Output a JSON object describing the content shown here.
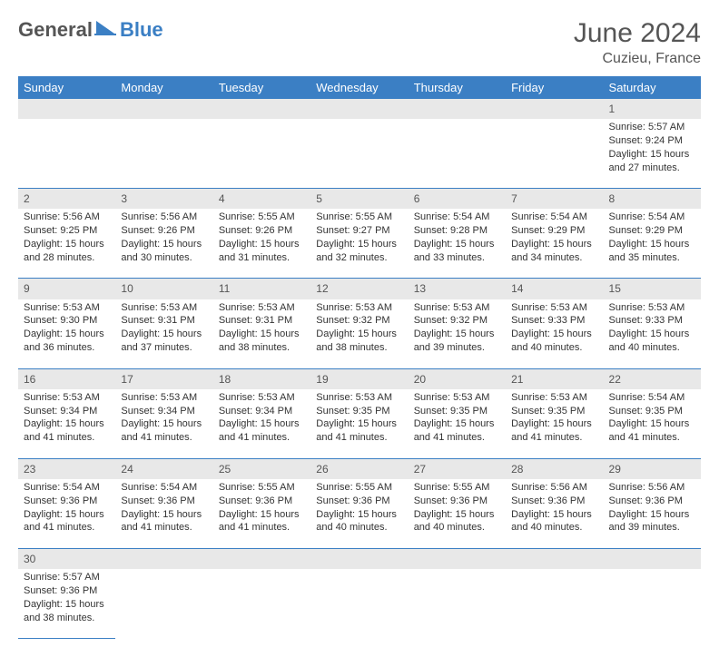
{
  "logo": {
    "general": "General",
    "blue": "Blue"
  },
  "title": "June 2024",
  "location": "Cuzieu, France",
  "colors": {
    "header_bg": "#3b7fc4",
    "header_text": "#ffffff",
    "daynum_bg": "#e8e8e8",
    "border": "#3b7fc4",
    "text": "#333333"
  },
  "daysOfWeek": [
    "Sunday",
    "Monday",
    "Tuesday",
    "Wednesday",
    "Thursday",
    "Friday",
    "Saturday"
  ],
  "weeks": [
    [
      null,
      null,
      null,
      null,
      null,
      null,
      {
        "n": "1",
        "sr": "Sunrise: 5:57 AM",
        "ss": "Sunset: 9:24 PM",
        "d1": "Daylight: 15 hours",
        "d2": "and 27 minutes."
      }
    ],
    [
      {
        "n": "2",
        "sr": "Sunrise: 5:56 AM",
        "ss": "Sunset: 9:25 PM",
        "d1": "Daylight: 15 hours",
        "d2": "and 28 minutes."
      },
      {
        "n": "3",
        "sr": "Sunrise: 5:56 AM",
        "ss": "Sunset: 9:26 PM",
        "d1": "Daylight: 15 hours",
        "d2": "and 30 minutes."
      },
      {
        "n": "4",
        "sr": "Sunrise: 5:55 AM",
        "ss": "Sunset: 9:26 PM",
        "d1": "Daylight: 15 hours",
        "d2": "and 31 minutes."
      },
      {
        "n": "5",
        "sr": "Sunrise: 5:55 AM",
        "ss": "Sunset: 9:27 PM",
        "d1": "Daylight: 15 hours",
        "d2": "and 32 minutes."
      },
      {
        "n": "6",
        "sr": "Sunrise: 5:54 AM",
        "ss": "Sunset: 9:28 PM",
        "d1": "Daylight: 15 hours",
        "d2": "and 33 minutes."
      },
      {
        "n": "7",
        "sr": "Sunrise: 5:54 AM",
        "ss": "Sunset: 9:29 PM",
        "d1": "Daylight: 15 hours",
        "d2": "and 34 minutes."
      },
      {
        "n": "8",
        "sr": "Sunrise: 5:54 AM",
        "ss": "Sunset: 9:29 PM",
        "d1": "Daylight: 15 hours",
        "d2": "and 35 minutes."
      }
    ],
    [
      {
        "n": "9",
        "sr": "Sunrise: 5:53 AM",
        "ss": "Sunset: 9:30 PM",
        "d1": "Daylight: 15 hours",
        "d2": "and 36 minutes."
      },
      {
        "n": "10",
        "sr": "Sunrise: 5:53 AM",
        "ss": "Sunset: 9:31 PM",
        "d1": "Daylight: 15 hours",
        "d2": "and 37 minutes."
      },
      {
        "n": "11",
        "sr": "Sunrise: 5:53 AM",
        "ss": "Sunset: 9:31 PM",
        "d1": "Daylight: 15 hours",
        "d2": "and 38 minutes."
      },
      {
        "n": "12",
        "sr": "Sunrise: 5:53 AM",
        "ss": "Sunset: 9:32 PM",
        "d1": "Daylight: 15 hours",
        "d2": "and 38 minutes."
      },
      {
        "n": "13",
        "sr": "Sunrise: 5:53 AM",
        "ss": "Sunset: 9:32 PM",
        "d1": "Daylight: 15 hours",
        "d2": "and 39 minutes."
      },
      {
        "n": "14",
        "sr": "Sunrise: 5:53 AM",
        "ss": "Sunset: 9:33 PM",
        "d1": "Daylight: 15 hours",
        "d2": "and 40 minutes."
      },
      {
        "n": "15",
        "sr": "Sunrise: 5:53 AM",
        "ss": "Sunset: 9:33 PM",
        "d1": "Daylight: 15 hours",
        "d2": "and 40 minutes."
      }
    ],
    [
      {
        "n": "16",
        "sr": "Sunrise: 5:53 AM",
        "ss": "Sunset: 9:34 PM",
        "d1": "Daylight: 15 hours",
        "d2": "and 41 minutes."
      },
      {
        "n": "17",
        "sr": "Sunrise: 5:53 AM",
        "ss": "Sunset: 9:34 PM",
        "d1": "Daylight: 15 hours",
        "d2": "and 41 minutes."
      },
      {
        "n": "18",
        "sr": "Sunrise: 5:53 AM",
        "ss": "Sunset: 9:34 PM",
        "d1": "Daylight: 15 hours",
        "d2": "and 41 minutes."
      },
      {
        "n": "19",
        "sr": "Sunrise: 5:53 AM",
        "ss": "Sunset: 9:35 PM",
        "d1": "Daylight: 15 hours",
        "d2": "and 41 minutes."
      },
      {
        "n": "20",
        "sr": "Sunrise: 5:53 AM",
        "ss": "Sunset: 9:35 PM",
        "d1": "Daylight: 15 hours",
        "d2": "and 41 minutes."
      },
      {
        "n": "21",
        "sr": "Sunrise: 5:53 AM",
        "ss": "Sunset: 9:35 PM",
        "d1": "Daylight: 15 hours",
        "d2": "and 41 minutes."
      },
      {
        "n": "22",
        "sr": "Sunrise: 5:54 AM",
        "ss": "Sunset: 9:35 PM",
        "d1": "Daylight: 15 hours",
        "d2": "and 41 minutes."
      }
    ],
    [
      {
        "n": "23",
        "sr": "Sunrise: 5:54 AM",
        "ss": "Sunset: 9:36 PM",
        "d1": "Daylight: 15 hours",
        "d2": "and 41 minutes."
      },
      {
        "n": "24",
        "sr": "Sunrise: 5:54 AM",
        "ss": "Sunset: 9:36 PM",
        "d1": "Daylight: 15 hours",
        "d2": "and 41 minutes."
      },
      {
        "n": "25",
        "sr": "Sunrise: 5:55 AM",
        "ss": "Sunset: 9:36 PM",
        "d1": "Daylight: 15 hours",
        "d2": "and 41 minutes."
      },
      {
        "n": "26",
        "sr": "Sunrise: 5:55 AM",
        "ss": "Sunset: 9:36 PM",
        "d1": "Daylight: 15 hours",
        "d2": "and 40 minutes."
      },
      {
        "n": "27",
        "sr": "Sunrise: 5:55 AM",
        "ss": "Sunset: 9:36 PM",
        "d1": "Daylight: 15 hours",
        "d2": "and 40 minutes."
      },
      {
        "n": "28",
        "sr": "Sunrise: 5:56 AM",
        "ss": "Sunset: 9:36 PM",
        "d1": "Daylight: 15 hours",
        "d2": "and 40 minutes."
      },
      {
        "n": "29",
        "sr": "Sunrise: 5:56 AM",
        "ss": "Sunset: 9:36 PM",
        "d1": "Daylight: 15 hours",
        "d2": "and 39 minutes."
      }
    ],
    [
      {
        "n": "30",
        "sr": "Sunrise: 5:57 AM",
        "ss": "Sunset: 9:36 PM",
        "d1": "Daylight: 15 hours",
        "d2": "and 38 minutes."
      },
      null,
      null,
      null,
      null,
      null,
      null
    ]
  ]
}
